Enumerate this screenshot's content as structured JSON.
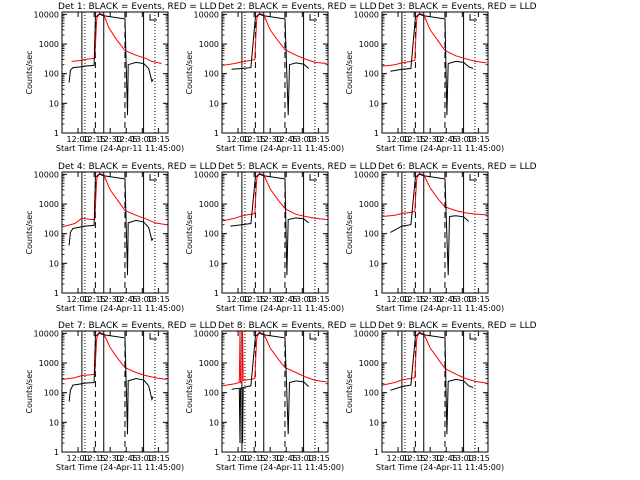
{
  "chart_data": [
    {
      "type": "line",
      "title": "Det 1: BLACK = Events, RED = LLD",
      "xlabel": "Start Time (24-Apr-11 11:45:00)",
      "ylabel": "Counts/sec",
      "x_ticks": [
        "12:00",
        "12:15",
        "12:30",
        "12:45",
        "13:00",
        "13:15"
      ],
      "y_ticks": [
        "1",
        "10",
        "100",
        "1000",
        "10000"
      ],
      "yscale": "log",
      "ylim": [
        1,
        12000
      ],
      "xlim": [
        11.75,
        13.4
      ],
      "solid_markers": [
        12.06,
        12.4,
        13.02
      ],
      "dashed_markers": [
        12.27,
        12.73
      ],
      "dotted_markers": [
        12.06,
        13.15
      ],
      "series": [
        {
          "color": "#ff0000",
          "x": [
            11.9,
            12.06,
            12.1,
            12.26,
            12.29,
            12.33,
            12.4,
            12.48,
            12.6,
            12.73,
            12.9,
            13.05,
            13.15,
            13.3
          ],
          "values": [
            260,
            280,
            300,
            330,
            7000,
            11000,
            9500,
            3500,
            1400,
            600,
            420,
            330,
            260,
            220
          ]
        },
        {
          "color": "#000000",
          "x": [
            11.86,
            11.88,
            11.92,
            12.06,
            12.1,
            12.25,
            12.27,
            12.33,
            12.4,
            12.73,
            12.77,
            12.78,
            12.9,
            13.02,
            13.1,
            13.15,
            13.17
          ],
          "values": [
            50,
            130,
            160,
            170,
            180,
            190,
            8000,
            10000,
            9000,
            7000,
            4,
            200,
            240,
            220,
            150,
            55,
            65
          ]
        }
      ]
    },
    {
      "type": "line",
      "title": "Det 2: BLACK = Events, RED = LLD",
      "xlabel": "Start Time (24-Apr-11 11:45:00)",
      "ylabel": "Counts/sec",
      "x_ticks": [
        "12:00",
        "12:15",
        "12:30",
        "12:45",
        "13:00",
        "13:15"
      ],
      "y_ticks": [
        "1",
        "10",
        "100",
        "1000",
        "10000"
      ],
      "yscale": "log",
      "ylim": [
        1,
        12000
      ],
      "xlim": [
        11.75,
        13.4
      ],
      "solid_markers": [
        12.06,
        12.4,
        13.02
      ],
      "dashed_markers": [
        12.27,
        12.73
      ],
      "dotted_markers": [
        12.06,
        13.15
      ],
      "series": [
        {
          "color": "#ff0000",
          "x": [
            11.76,
            11.95,
            12.06,
            12.2,
            12.26,
            12.29,
            12.33,
            12.4,
            12.5,
            12.62,
            12.73,
            12.9,
            13.05,
            13.2,
            13.38
          ],
          "values": [
            190,
            220,
            250,
            280,
            300,
            7000,
            11000,
            9500,
            3000,
            1300,
            650,
            420,
            310,
            240,
            220
          ]
        },
        {
          "color": "#000000",
          "x": [
            11.9,
            12.06,
            12.2,
            12.27,
            12.33,
            12.4,
            12.73,
            12.78,
            12.8,
            12.9,
            13.02,
            13.1
          ],
          "values": [
            140,
            150,
            160,
            8000,
            10000,
            9000,
            7000,
            4,
            200,
            230,
            210,
            150
          ]
        }
      ]
    },
    {
      "type": "line",
      "title": "Det 3: BLACK = Events, RED = LLD",
      "xlabel": "Start Time (24-Apr-11 11:45:00)",
      "ylabel": "Counts/sec",
      "x_ticks": [
        "12:00",
        "12:15",
        "12:30",
        "12:45",
        "13:00",
        "13:15"
      ],
      "y_ticks": [
        "1",
        "10",
        "100",
        "1000",
        "10000"
      ],
      "yscale": "log",
      "ylim": [
        1,
        12000
      ],
      "xlim": [
        11.75,
        13.4
      ],
      "solid_markers": [
        12.06,
        12.4,
        13.02
      ],
      "dashed_markers": [
        12.27,
        12.73
      ],
      "dotted_markers": [
        12.06,
        13.15
      ],
      "series": [
        {
          "color": "#ff0000",
          "x": [
            11.76,
            11.95,
            12.06,
            12.2,
            12.26,
            12.29,
            12.33,
            12.4,
            12.5,
            12.62,
            12.73,
            12.9,
            13.05,
            13.2,
            13.38
          ],
          "values": [
            180,
            200,
            230,
            260,
            280,
            7000,
            11000,
            9500,
            3000,
            1300,
            600,
            400,
            320,
            260,
            230
          ]
        },
        {
          "color": "#000000",
          "x": [
            11.88,
            12.06,
            12.2,
            12.27,
            12.33,
            12.4,
            12.73,
            12.76,
            12.78,
            12.9,
            13.02,
            13.1,
            13.17
          ],
          "values": [
            120,
            140,
            150,
            8000,
            10000,
            9000,
            7000,
            4,
            220,
            260,
            240,
            170,
            150
          ]
        }
      ]
    },
    {
      "type": "line",
      "title": "Det 4: BLACK = Events, RED = LLD",
      "xlabel": "Start Time (24-Apr-11 11:45:00)",
      "ylabel": "Counts/sec",
      "x_ticks": [
        "12:00",
        "12:15",
        "12:30",
        "12:45",
        "13:00",
        "13:15"
      ],
      "y_ticks": [
        "1",
        "10",
        "100",
        "1000",
        "10000"
      ],
      "yscale": "log",
      "ylim": [
        1,
        12000
      ],
      "xlim": [
        11.75,
        13.4
      ],
      "solid_markers": [
        12.06,
        12.4,
        13.02
      ],
      "dashed_markers": [
        12.27,
        12.73
      ],
      "dotted_markers": [
        12.06,
        13.15
      ],
      "series": [
        {
          "color": "#ff0000",
          "x": [
            11.76,
            11.95,
            12.06,
            12.2,
            12.26,
            12.29,
            12.33,
            12.4,
            12.5,
            12.62,
            12.73,
            12.9,
            13.05,
            13.2,
            13.38
          ],
          "values": [
            170,
            220,
            330,
            300,
            300,
            7000,
            11000,
            9500,
            3000,
            1300,
            600,
            420,
            320,
            230,
            200
          ]
        },
        {
          "color": "#000000",
          "x": [
            11.86,
            11.88,
            11.92,
            12.06,
            12.1,
            12.25,
            12.27,
            12.33,
            12.4,
            12.73,
            12.77,
            12.78,
            12.9,
            13.02,
            13.1,
            13.15,
            13.17
          ],
          "values": [
            40,
            110,
            150,
            170,
            180,
            190,
            8000,
            10000,
            9000,
            7000,
            4,
            230,
            280,
            250,
            160,
            60,
            70
          ]
        }
      ]
    },
    {
      "type": "line",
      "title": "Det 5: BLACK = Events, RED = LLD",
      "xlabel": "Start Time (24-Apr-11 11:45:00)",
      "ylabel": "Counts/sec",
      "x_ticks": [
        "12:00",
        "12:15",
        "12:30",
        "12:45",
        "13:00",
        "13:15"
      ],
      "y_ticks": [
        "1",
        "10",
        "100",
        "1000",
        "10000"
      ],
      "yscale": "log",
      "ylim": [
        1,
        12000
      ],
      "xlim": [
        11.75,
        13.4
      ],
      "solid_markers": [
        12.06,
        12.4,
        13.02
      ],
      "dashed_markers": [
        12.27,
        12.73
      ],
      "dotted_markers": [
        12.06,
        13.15
      ],
      "series": [
        {
          "color": "#ff0000",
          "x": [
            11.76,
            11.95,
            12.06,
            12.2,
            12.26,
            12.29,
            12.33,
            12.4,
            12.5,
            12.62,
            12.73,
            12.9,
            13.05,
            13.2,
            13.38
          ],
          "values": [
            270,
            330,
            400,
            450,
            480,
            7000,
            11000,
            9500,
            3200,
            1400,
            700,
            450,
            380,
            330,
            300
          ]
        },
        {
          "color": "#000000",
          "x": [
            11.88,
            12.06,
            12.2,
            12.27,
            12.33,
            12.4,
            12.73,
            12.76,
            12.78,
            12.9,
            13.02,
            13.1
          ],
          "values": [
            180,
            200,
            220,
            8000,
            10000,
            9000,
            7000,
            4,
            300,
            340,
            320,
            230
          ]
        }
      ]
    },
    {
      "type": "line",
      "title": "Det 6: BLACK = Events, RED = LLD",
      "xlabel": "Start Time (24-Apr-11 11:45:00)",
      "ylabel": "Counts/sec",
      "x_ticks": [
        "12:00",
        "12:15",
        "12:30",
        "12:45",
        "13:00",
        "13:15"
      ],
      "y_ticks": [
        "1",
        "10",
        "100",
        "1000",
        "10000"
      ],
      "yscale": "log",
      "ylim": [
        1,
        12000
      ],
      "xlim": [
        11.75,
        13.4
      ],
      "solid_markers": [
        12.06,
        12.4,
        13.02
      ],
      "dashed_markers": [
        12.27,
        12.73
      ],
      "dotted_markers": [
        12.06,
        13.15
      ],
      "series": [
        {
          "color": "#ff0000",
          "x": [
            11.76,
            11.95,
            12.06,
            12.2,
            12.26,
            12.29,
            12.33,
            12.4,
            12.5,
            12.62,
            12.73,
            12.9,
            13.05,
            13.2,
            13.38
          ],
          "values": [
            380,
            420,
            480,
            520,
            560,
            7000,
            11000,
            9500,
            3500,
            1500,
            800,
            600,
            500,
            460,
            430
          ]
        },
        {
          "color": "#000000",
          "x": [
            11.88,
            12.06,
            12.2,
            12.27,
            12.33,
            12.4,
            12.73,
            12.78,
            12.8,
            12.9,
            13.02,
            13.1
          ],
          "values": [
            110,
            180,
            200,
            8000,
            10000,
            9000,
            7000,
            4,
            380,
            400,
            370,
            260
          ]
        }
      ]
    },
    {
      "type": "line",
      "title": "Det 7: BLACK = Events, RED = LLD",
      "xlabel": "Start Time (24-Apr-11 11:45:00)",
      "ylabel": "Counts/sec",
      "x_ticks": [
        "12:00",
        "12:15",
        "12:30",
        "12:45",
        "13:00",
        "13:15"
      ],
      "y_ticks": [
        "1",
        "10",
        "100",
        "1000",
        "10000"
      ],
      "yscale": "log",
      "ylim": [
        1,
        12000
      ],
      "xlim": [
        11.75,
        13.4
      ],
      "solid_markers": [
        12.06,
        12.4,
        13.02
      ],
      "dashed_markers": [
        12.27,
        12.73
      ],
      "dotted_markers": [
        12.06,
        13.15
      ],
      "series": [
        {
          "color": "#ff0000",
          "x": [
            11.76,
            11.95,
            12.06,
            12.2,
            12.26,
            12.29,
            12.33,
            12.4,
            12.5,
            12.62,
            12.73,
            12.9,
            13.05,
            13.2,
            13.38
          ],
          "values": [
            280,
            320,
            380,
            400,
            420,
            7000,
            11000,
            9500,
            3300,
            1400,
            700,
            480,
            380,
            320,
            280
          ]
        },
        {
          "color": "#000000",
          "x": [
            11.86,
            11.88,
            11.92,
            12.06,
            12.1,
            12.25,
            12.27,
            12.33,
            12.4,
            12.73,
            12.77,
            12.78,
            12.9,
            13.02,
            13.1,
            13.15,
            13.17
          ],
          "values": [
            50,
            120,
            180,
            200,
            210,
            220,
            8000,
            10000,
            9000,
            7000,
            4,
            250,
            300,
            270,
            170,
            60,
            75
          ]
        }
      ]
    },
    {
      "type": "line",
      "title": "Det 8: BLACK = Events, RED = LLD",
      "xlabel": "Start Time (24-Apr-11 11:45:00)",
      "ylabel": "Counts/sec",
      "x_ticks": [
        "12:00",
        "12:15",
        "12:30",
        "12:45",
        "13:00",
        "13:15"
      ],
      "y_ticks": [
        "1",
        "10",
        "100",
        "1000",
        "10000"
      ],
      "yscale": "log",
      "ylim": [
        1,
        12000
      ],
      "xlim": [
        11.75,
        13.4
      ],
      "solid_markers": [
        12.06,
        12.4,
        13.02
      ],
      "dashed_markers": [
        12.27,
        12.73
      ],
      "dotted_markers": [
        12.06,
        13.15
      ],
      "series": [
        {
          "color": "#ff0000",
          "x": [
            11.76,
            11.95,
            12.02,
            12.03,
            12.04,
            12.06,
            12.07,
            12.08,
            12.2,
            12.26,
            12.29,
            12.33,
            12.4,
            12.5,
            12.62,
            12.73,
            12.9,
            13.05,
            13.2,
            13.38
          ],
          "values": [
            170,
            200,
            220,
            12000,
            220,
            250,
            12000,
            260,
            280,
            300,
            7000,
            11000,
            9500,
            3200,
            1400,
            700,
            480,
            340,
            260,
            230
          ]
        },
        {
          "color": "#000000",
          "x": [
            11.9,
            12.02,
            12.03,
            12.04,
            12.06,
            12.07,
            12.08,
            12.2,
            12.27,
            12.33,
            12.4,
            12.73,
            12.78,
            12.8,
            12.9,
            13.02,
            13.1
          ],
          "values": [
            130,
            140,
            2,
            140,
            150,
            2,
            150,
            170,
            8000,
            10000,
            9000,
            7000,
            4,
            220,
            250,
            230,
            160
          ]
        }
      ]
    },
    {
      "type": "line",
      "title": "Det 9: BLACK = Events, RED = LLD",
      "xlabel": "Start Time (24-Apr-11 11:45:00)",
      "ylabel": "Counts/sec",
      "x_ticks": [
        "12:00",
        "12:15",
        "12:30",
        "12:45",
        "13:00",
        "13:15"
      ],
      "y_ticks": [
        "1",
        "10",
        "100",
        "1000",
        "10000"
      ],
      "yscale": "log",
      "ylim": [
        1,
        12000
      ],
      "xlim": [
        11.75,
        13.4
      ],
      "solid_markers": [
        12.06,
        12.4,
        13.02
      ],
      "dashed_markers": [
        12.27,
        12.73
      ],
      "dotted_markers": [
        12.06,
        13.15
      ],
      "series": [
        {
          "color": "#ff0000",
          "x": [
            11.76,
            11.95,
            12.06,
            12.2,
            12.26,
            12.29,
            12.33,
            12.4,
            12.5,
            12.62,
            12.73,
            12.9,
            13.05,
            13.2,
            13.38
          ],
          "values": [
            180,
            220,
            270,
            300,
            320,
            7000,
            11000,
            9500,
            3200,
            1400,
            650,
            420,
            300,
            240,
            210
          ]
        },
        {
          "color": "#000000",
          "x": [
            11.88,
            12.06,
            12.2,
            12.27,
            12.33,
            12.4,
            12.73,
            12.76,
            12.78,
            12.9,
            13.02,
            13.1,
            13.17
          ],
          "values": [
            120,
            160,
            180,
            8000,
            10000,
            9000,
            7000,
            4,
            240,
            280,
            250,
            170,
            150
          ]
        }
      ]
    }
  ]
}
